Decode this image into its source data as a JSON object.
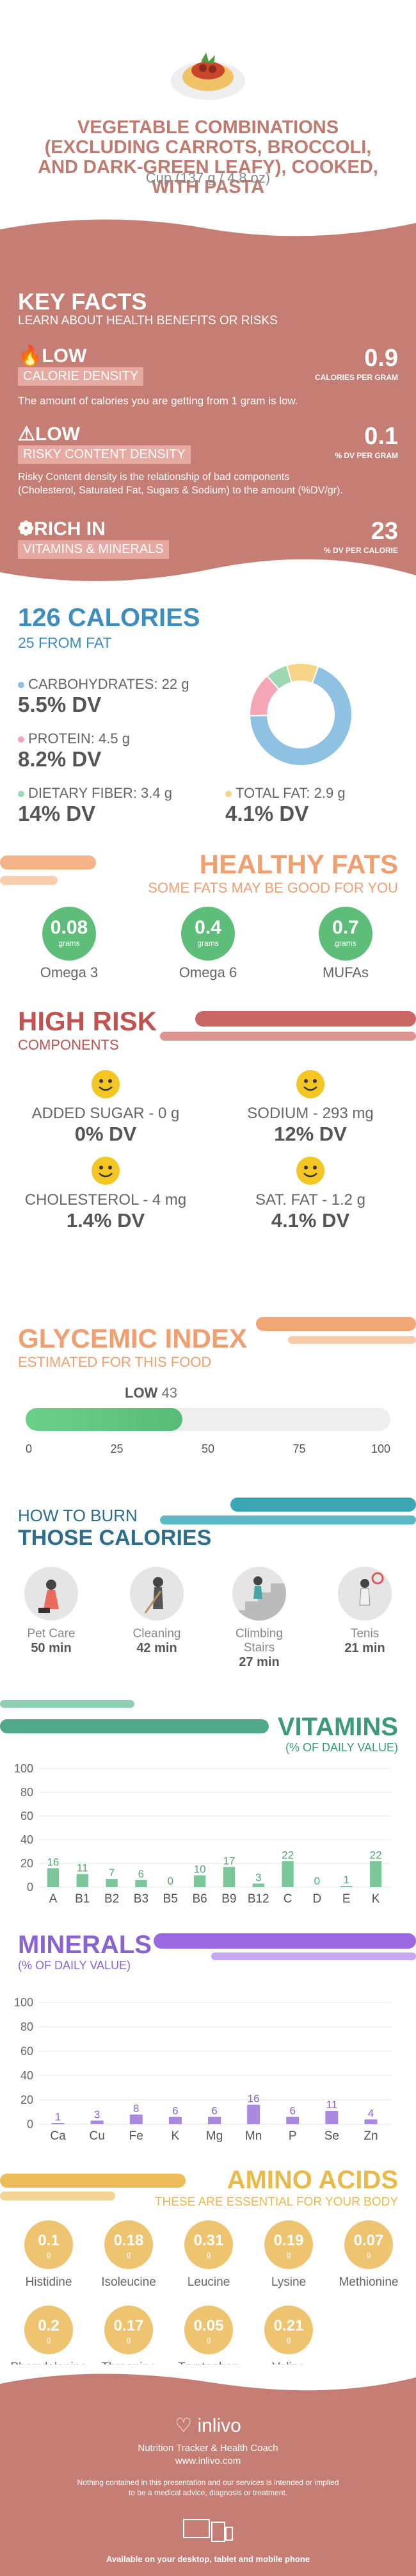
{
  "header": {
    "title": "VEGETABLE COMBINATIONS (EXCLUDING CARROTS, BROCCOLI, AND DARK-GREEN LEAFY), COOKED, WITH PASTA",
    "title_lines": [
      "VEGETABLE COMBINATIONS",
      "(EXCLUDING CARROTS, BROCCOLI,",
      "AND DARK-GREEN LEAFY), COOKED,",
      "WITH PASTA"
    ],
    "serving": "Cup (137 g / 4.8 oz)"
  },
  "key_facts": {
    "title": "KEY FACTS",
    "subtitle": "LEARN ABOUT HEALTH BENEFITS OR RISKS",
    "calorie_density": {
      "level": "LOW",
      "label": "CALORIE DENSITY",
      "value": "0.9",
      "unit": "CALORIES PER GRAM",
      "desc": "The amount of calories you are getting from 1 gram is low."
    },
    "risky_density": {
      "level": "LOW",
      "label": "RISKY CONTENT DENSITY",
      "value": "0.1",
      "unit": "% DV PER GRAM",
      "desc_lines": [
        "Risky Content density is the relationship of bad components",
        "(Cholesterol, Saturated Fat, Sugars & Sodium) to the amount (%DV/gr)."
      ]
    },
    "vitamins": {
      "level": "RICH  IN",
      "label": "VITAMINS & MINERALS",
      "value": "23",
      "unit": "% DV PER CALORIE"
    }
  },
  "calories": {
    "title": "126 CALORIES",
    "from_fat": "25 FROM FAT",
    "carbs": {
      "label": "CARBOHYDRATES: 22 g",
      "dv": "5.5% DV"
    },
    "protein": {
      "label": "PROTEIN: 4.5 g",
      "dv": "8.2% DV"
    },
    "fiber": {
      "label": "DIETARY FIBER: 3.4 g",
      "dv": "14% DV"
    },
    "fat": {
      "label": "TOTAL FAT: 2.9 g",
      "dv": "4.1% DV"
    },
    "donut": [
      {
        "name": "carbs",
        "value": 69,
        "color": "#8fc1e3"
      },
      {
        "name": "protein",
        "value": 14,
        "color": "#f4a6b7"
      },
      {
        "name": "fiber",
        "value": 7,
        "color": "#9ed8b3"
      },
      {
        "name": "fat",
        "value": 10,
        "color": "#f7d489"
      }
    ]
  },
  "fats": {
    "title": "HEALTHY FATS",
    "subtitle": "SOME FATS MAY BE GOOD FOR YOU",
    "items": [
      {
        "value": "0.08",
        "unit": "grams",
        "label": "Omega 3"
      },
      {
        "value": "0.4",
        "unit": "grams",
        "label": "Omega 6"
      },
      {
        "value": "0.7",
        "unit": "grams",
        "label": "MUFAs"
      }
    ]
  },
  "risk": {
    "title": "HIGH RISK",
    "subtitle": "COMPONENTS",
    "items": [
      {
        "label": "ADDED SUGAR - 0 g",
        "dv": "0% DV"
      },
      {
        "label": "SODIUM - 293 mg",
        "dv": "12% DV"
      },
      {
        "label": "CHOLESTEROL - 4 mg",
        "dv": "1.4% DV"
      },
      {
        "label": "SAT. FAT - 1.2 g",
        "dv": "4.1% DV"
      }
    ]
  },
  "glycemic": {
    "title": "GLYCEMIC INDEX",
    "subtitle": "ESTIMATED FOR THIS FOOD",
    "level": "LOW",
    "value": 43,
    "value_text": "43",
    "ticks": [
      "0",
      "25",
      "50",
      "75",
      "100"
    ]
  },
  "burn": {
    "title1": "HOW TO BURN",
    "title2": "THOSE CALORIES",
    "items": [
      {
        "label": "Pet Care",
        "time": "50 min"
      },
      {
        "label": "Cleaning",
        "time": "42 min"
      },
      {
        "label": "Climbing Stairs",
        "time": "27 min"
      },
      {
        "label": "Tenis",
        "time": "21 min"
      }
    ]
  },
  "vitamins": {
    "title": "VITAMINS",
    "subtitle": "(% OF DAILY VALUE)",
    "chart_data": {
      "type": "bar",
      "categories": [
        "A",
        "B1",
        "B2",
        "B3",
        "B5",
        "B6",
        "B9",
        "B12",
        "C",
        "D",
        "E",
        "K"
      ],
      "values": [
        16,
        11,
        7,
        6,
        0,
        10,
        17,
        3,
        22,
        0,
        1,
        22
      ],
      "value_labels": [
        "16",
        "11",
        "7",
        "6",
        "0",
        "10",
        "17",
        "3",
        "22",
        "0",
        "1",
        "22"
      ],
      "ylim": [
        0,
        100
      ],
      "yticks": [
        "0",
        "20",
        "40",
        "60",
        "80",
        "100"
      ],
      "color": "#7cc79a"
    }
  },
  "minerals": {
    "title": "MINERALS",
    "subtitle": "(% OF DAILY VALUE)",
    "chart_data": {
      "type": "bar",
      "categories": [
        "Ca",
        "Cu",
        "Fe",
        "K",
        "Mg",
        "Mn",
        "P",
        "Se",
        "Zn"
      ],
      "values": [
        1,
        3,
        8,
        6,
        6,
        16,
        6,
        11,
        4
      ],
      "value_labels": [
        "1",
        "3",
        "8",
        "6",
        "6",
        "16",
        "6",
        "11",
        "4"
      ],
      "ylim": [
        0,
        100
      ],
      "yticks": [
        "0",
        "20",
        "40",
        "60",
        "80",
        "100"
      ],
      "color": "#a98ae0"
    }
  },
  "amino": {
    "title": "AMINO ACIDS",
    "subtitle": "THESE ARE ESSENTIAL FOR YOUR BODY",
    "unit": "g",
    "items": [
      {
        "value": "0.1",
        "label": "Histidine"
      },
      {
        "value": "0.18",
        "label": "Isoleucine"
      },
      {
        "value": "0.31",
        "label": "Leucine"
      },
      {
        "value": "0.19",
        "label": "Lysine"
      },
      {
        "value": "0.07",
        "label": "Methionine"
      },
      {
        "value": "0.2",
        "label": "Phenylalanine"
      },
      {
        "value": "0.17",
        "label": "Threonine"
      },
      {
        "value": "0.05",
        "label": "Tryptophan"
      },
      {
        "value": "0.21",
        "label": "Valine"
      }
    ]
  },
  "footer": {
    "brand": "inlivo",
    "tagline": "Nutrition Tracker & Health Coach",
    "url": "www.inlivo.com",
    "disclaimer_lines": [
      "Nothing contained in this presentation and our services is intended or implied",
      "to be a medical advice, diagnosis or treatment."
    ],
    "available": "Available on your desktop, tablet and mobile phone"
  },
  "colors": {
    "brown": "#c57d74",
    "green": "#5ebd78",
    "blue": "#3d8ebf",
    "red": "#c0524f",
    "orange": "#f0a070",
    "purple": "#8a63d2",
    "gold": "#e9b94a"
  }
}
